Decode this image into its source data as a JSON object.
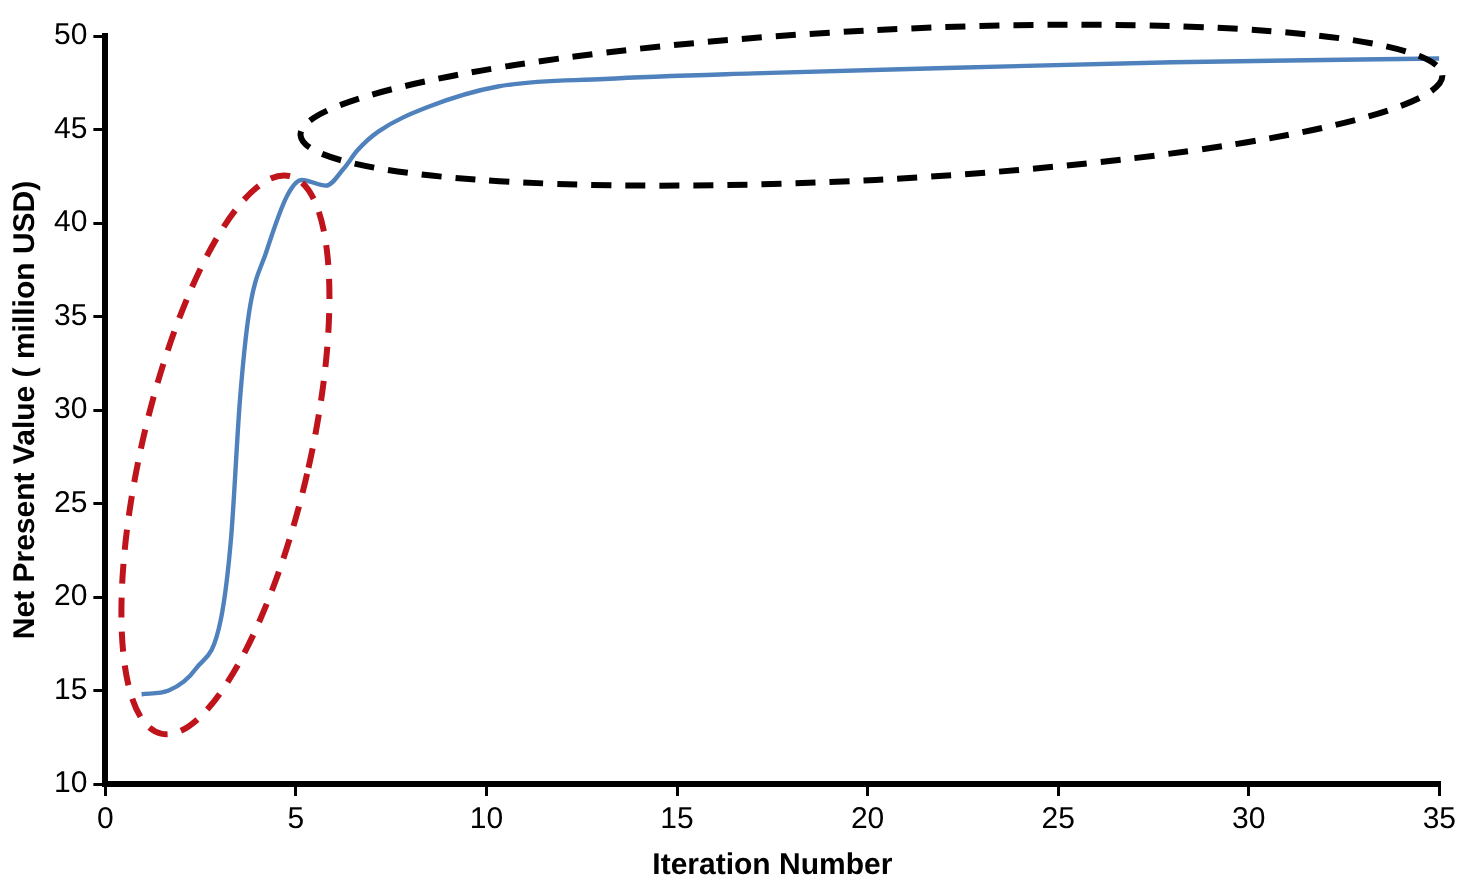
{
  "chart_data": {
    "type": "line",
    "xlabel": "Iteration Number",
    "ylabel": "Net Present Value ( million USD)",
    "x": [
      0.95,
      1.66,
      2.39,
      3.03,
      3.3,
      3.53,
      3.77,
      4.23,
      4.78,
      5.15,
      5.79,
      6.25,
      6.62,
      7.17,
      8.46,
      10.3,
      13.1,
      17,
      22.3,
      28,
      35
    ],
    "series": [
      {
        "color": "#4f81bd",
        "values": [
          14.8,
          15.0,
          16.2,
          18.8,
          23.2,
          30.5,
          35.2,
          38.5,
          41.5,
          42.3,
          42.0,
          42.9,
          43.9,
          44.9,
          46.2,
          47.3,
          47.7,
          48.0,
          48.3,
          48.6,
          48.8
        ]
      }
    ],
    "xlim": [
      0,
      35
    ],
    "xticks": [
      0,
      5,
      10,
      15,
      20,
      25,
      30,
      35
    ],
    "ylim": [
      10,
      50
    ],
    "yticks": [
      10,
      15,
      20,
      25,
      30,
      35,
      40,
      45,
      50
    ],
    "grid": false,
    "legend": false,
    "marker": "none",
    "line_style": "solid"
  }
}
